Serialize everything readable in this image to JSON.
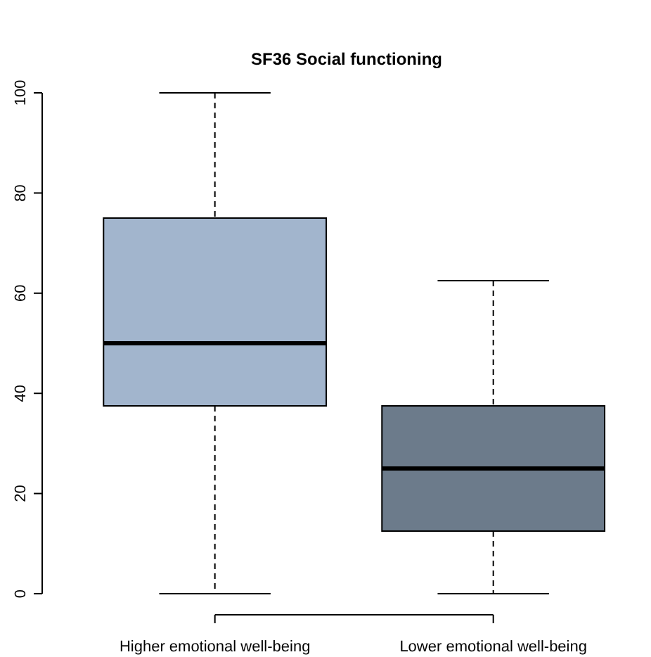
{
  "chart_data": {
    "type": "box",
    "title": "SF36 Social functioning",
    "categories": [
      "Higher emotional well-being",
      "Lower emotional well-being"
    ],
    "boxes": [
      {
        "low": 0,
        "q1": 37.5,
        "median": 50,
        "q3": 75,
        "high": 100
      },
      {
        "low": 0,
        "q1": 12.5,
        "median": 25,
        "q3": 37.5,
        "high": 62.5
      }
    ],
    "colors": [
      "#a2b5cd",
      "#6c7b8b"
    ],
    "ylim": [
      0,
      100
    ],
    "yticks": [
      0,
      20,
      40,
      60,
      80,
      100
    ],
    "grid": false,
    "line_style": "dashed"
  }
}
